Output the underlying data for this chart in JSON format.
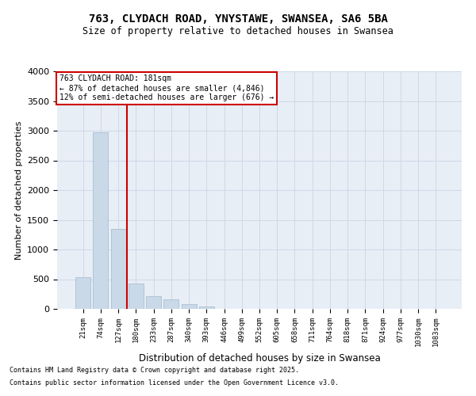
{
  "title_line1": "763, CLYDACH ROAD, YNYSTAWE, SWANSEA, SA6 5BA",
  "title_line2": "Size of property relative to detached houses in Swansea",
  "xlabel": "Distribution of detached houses by size in Swansea",
  "ylabel": "Number of detached properties",
  "categories": [
    "21sqm",
    "74sqm",
    "127sqm",
    "180sqm",
    "233sqm",
    "287sqm",
    "340sqm",
    "393sqm",
    "446sqm",
    "499sqm",
    "552sqm",
    "605sqm",
    "658sqm",
    "711sqm",
    "764sqm",
    "818sqm",
    "871sqm",
    "924sqm",
    "977sqm",
    "1030sqm",
    "1083sqm"
  ],
  "values": [
    530,
    2970,
    1350,
    430,
    210,
    160,
    75,
    40,
    0,
    0,
    0,
    0,
    0,
    0,
    0,
    0,
    0,
    0,
    0,
    0,
    0
  ],
  "bar_color": "#c9d9e8",
  "bar_edgecolor": "#a0b8cc",
  "vline_x_index": 3,
  "vline_color": "#cc0000",
  "annotation_line1": "763 CLYDACH ROAD: 181sqm",
  "annotation_line2": "← 87% of detached houses are smaller (4,846)",
  "annotation_line3": "12% of semi-detached houses are larger (676) →",
  "annotation_box_color": "#cc0000",
  "annotation_bg": "#ffffff",
  "ylim": [
    0,
    4000
  ],
  "yticks": [
    0,
    500,
    1000,
    1500,
    2000,
    2500,
    3000,
    3500,
    4000
  ],
  "grid_color": "#d0d8e8",
  "bg_color": "#e8eef5",
  "footnote1": "Contains HM Land Registry data © Crown copyright and database right 2025.",
  "footnote2": "Contains public sector information licensed under the Open Government Licence v3.0."
}
